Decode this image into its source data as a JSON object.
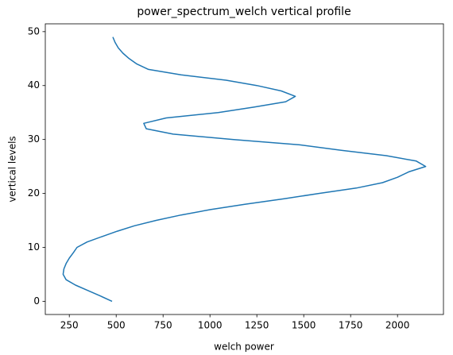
{
  "chart_data": {
    "type": "line",
    "title": "power_spectrum_welch vertical profile",
    "xlabel": "welch power",
    "ylabel": "vertical levels",
    "series": [
      {
        "color": "#1f77b4",
        "x": [
          478,
          415,
          349,
          283,
          233,
          217,
          221,
          233,
          250,
          271,
          291,
          345,
          424,
          506,
          597,
          713,
          846,
          1003,
          1189,
          1396,
          1580,
          1780,
          1920,
          2000,
          2060,
          2150,
          2100,
          1940,
          1700,
          1479,
          1127,
          804,
          660,
          647,
          767,
          1044,
          1234,
          1404,
          1455,
          1380,
          1250,
          1086,
          846,
          672,
          610,
          569,
          536,
          511,
          494,
          482
        ],
        "y": [
          0,
          1,
          2,
          3,
          4,
          5,
          6,
          7,
          8,
          9,
          10,
          11,
          12,
          13,
          14,
          15,
          16,
          17,
          18,
          19,
          20,
          21,
          22,
          23,
          24,
          25,
          26,
          27,
          28,
          29,
          30,
          31,
          32,
          33,
          34,
          35,
          36,
          37,
          38,
          39,
          40,
          41,
          42,
          43,
          44,
          45,
          46,
          47,
          48,
          49
        ]
      }
    ],
    "xlim": [
      122,
      2245
    ],
    "ylim": [
      -2.45,
      51.45
    ],
    "xticks": [
      250,
      500,
      750,
      1000,
      1250,
      1500,
      1750,
      2000
    ],
    "yticks": [
      0,
      10,
      20,
      30,
      40,
      50
    ],
    "grid": false
  }
}
